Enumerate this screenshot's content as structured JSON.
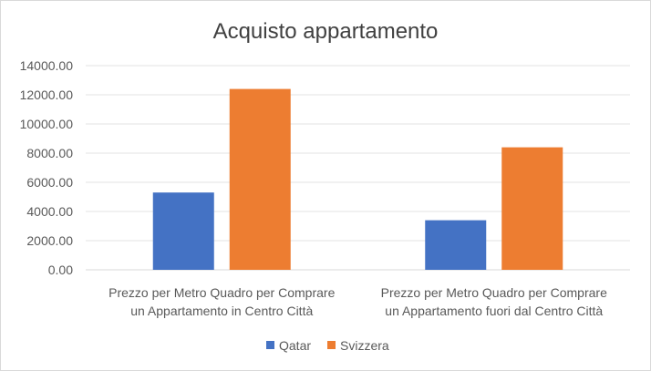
{
  "chart_data": {
    "type": "bar",
    "title": "Acquisto appartamento",
    "categories": [
      [
        "Prezzo per Metro Quadro per Comprare",
        "un Appartamento in Centro Città"
      ],
      [
        "Prezzo per Metro Quadro per Comprare",
        "un Appartamento fuori dal Centro Città"
      ]
    ],
    "series": [
      {
        "name": "Qatar",
        "values": [
          5300,
          3400
        ],
        "color": "#4472C4"
      },
      {
        "name": "Svizzera",
        "values": [
          12400,
          8400
        ],
        "color": "#ED7D31"
      }
    ],
    "ylim": [
      0,
      14000
    ],
    "yticks": [
      "0.00",
      "2000.00",
      "4000.00",
      "6000.00",
      "8000.00",
      "10000.00",
      "12000.00",
      "14000.00"
    ],
    "grid": true,
    "legend_position": "bottom"
  }
}
